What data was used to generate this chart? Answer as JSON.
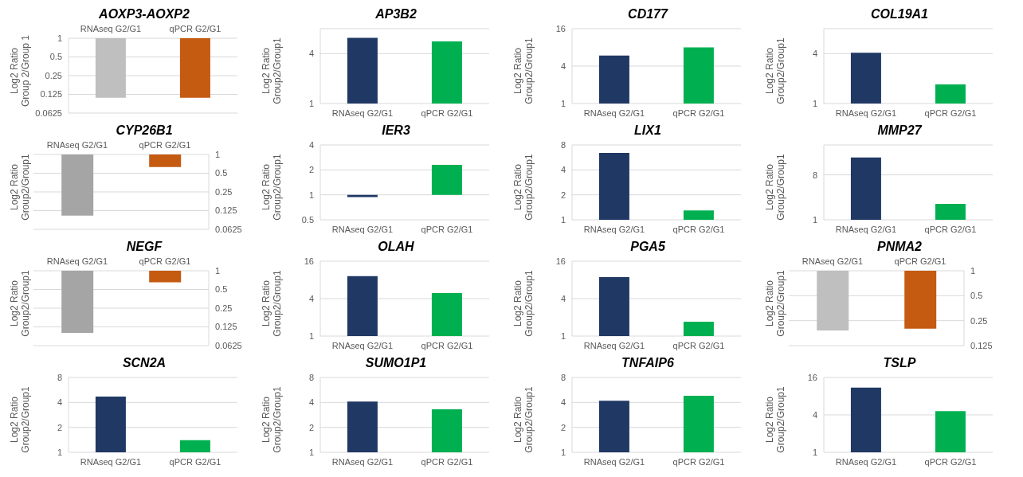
{
  "chart_data": [
    {
      "type": "bar",
      "title": "AOXP3-AOXP2",
      "ylabel": "Log2 Ratio\nGroup 2/Group 1",
      "categories": [
        "RNAseq G2/G1",
        "qPCR G2/G1"
      ],
      "values": [
        -0.89,
        -0.89
      ],
      "base": [
        1,
        1
      ],
      "colors": [
        "#bfbfbf",
        "#c55a11"
      ],
      "log": true,
      "ylim": [
        0.0625,
        1
      ],
      "yticks": [
        0.0625,
        0.125,
        0.25,
        0.5,
        1
      ],
      "grid": "y"
    },
    {
      "type": "bar",
      "title": "AP3B2",
      "ylabel": "Log2 Ratio\nGroup2/Group1",
      "categories": [
        "RNAseq G2/G1",
        "qPCR G2/G1"
      ],
      "values": [
        6.2,
        5.6
      ],
      "colors": [
        "#203864",
        "#00b050"
      ],
      "log": true,
      "ylim": [
        1,
        8
      ],
      "yticks": [
        1,
        4
      ],
      "grid": "y"
    },
    {
      "type": "bar",
      "title": "CD177",
      "ylabel": "Log2 Ratio\nGroup2/Group1",
      "categories": [
        "RNAseq G2/G1",
        "qPCR G2/G1"
      ],
      "values": [
        5.9,
        8
      ],
      "colors": [
        "#203864",
        "#00b050"
      ],
      "log": true,
      "ylim": [
        1,
        16
      ],
      "yticks": [
        1,
        4,
        16
      ],
      "grid": "y"
    },
    {
      "type": "bar",
      "title": "COL19A1",
      "ylabel": "Log2 Ratio\nGroup2/Group1",
      "categories": [
        "RNAseq G2/G1",
        "qPCR G2/G1"
      ],
      "values": [
        4.1,
        1.7
      ],
      "colors": [
        "#203864",
        "#00b050"
      ],
      "log": true,
      "ylim": [
        1,
        8
      ],
      "yticks": [
        1,
        4
      ],
      "grid": "y"
    },
    {
      "type": "bar",
      "title": "CYP26B1",
      "ylabel": "Log2 Ratio\nGroup2/Group1",
      "categories": [
        "RNAseq G2/G1",
        "qPCR G2/G1"
      ],
      "series": [
        {
          "axis": "y2",
          "values": [
            -0.896,
            -0.37
          ],
          "base": [
            1,
            1
          ]
        }
      ],
      "colors": [
        "#a5a5a5",
        "#c55a11"
      ],
      "log": "y2",
      "y2lim": [
        0.0625,
        1
      ],
      "y2ticks": [
        0.0625,
        0.125,
        0.25,
        0.5,
        1
      ],
      "grid": "y"
    },
    {
      "type": "bar",
      "title": "IER3",
      "ylabel": "Log2 Ratio\nGroup2/Group1",
      "categories": [
        "RNAseq G2/G1",
        "qPCR G2/G1"
      ],
      "values": [
        -0.06,
        1.3
      ],
      "base": [
        1,
        1
      ],
      "colors": [
        "#203864",
        "#00b050"
      ],
      "log": true,
      "ylim": [
        0.5,
        4
      ],
      "yticks": [
        0.5,
        1,
        2,
        4
      ],
      "grid": "y"
    },
    {
      "type": "bar",
      "title": "LIX1",
      "ylabel": "Log2 Ratio\nGroup2/Group1",
      "categories": [
        "RNAseq G2/G1",
        "qPCR G2/G1"
      ],
      "values": [
        6.4,
        1.3
      ],
      "colors": [
        "#203864",
        "#00b050"
      ],
      "log": true,
      "ylim": [
        1,
        8
      ],
      "yticks": [
        1,
        2,
        4,
        8
      ],
      "grid": "y"
    },
    {
      "type": "bar",
      "title": "MMP27",
      "ylabel": "Log2 Ratio\nGroup2/Group1",
      "categories": [
        "RNAseq G2/G1",
        "qPCR G2/G1"
      ],
      "values": [
        17.9,
        2.1
      ],
      "colors": [
        "#203864",
        "#00b050"
      ],
      "log": true,
      "ylim": [
        1,
        32
      ],
      "yticks": [
        1,
        8
      ],
      "grid": "y"
    },
    {
      "type": "bar",
      "title": "NEGF",
      "ylabel": "Log2 Ratio\nGroup2/Group1",
      "categories": [
        "RNAseq G2/G1",
        "qPCR G2/G1"
      ],
      "series": [
        {
          "axis": "y2",
          "values": [
            -0.9,
            -0.35
          ],
          "base": [
            1,
            1
          ]
        }
      ],
      "colors": [
        "#a5a5a5",
        "#c55a11"
      ],
      "log": "y2",
      "y2lim": [
        0.0625,
        1
      ],
      "y2ticks": [
        0.0625,
        0.125,
        0.25,
        0.5,
        1
      ],
      "grid": "y"
    },
    {
      "type": "bar",
      "title": "OLAH",
      "ylabel": "Log2 Ratio\nGroup2/Group1",
      "categories": [
        "RNAseq G2/G1",
        "qPCR G2/G1"
      ],
      "values": [
        9.2,
        4.9
      ],
      "colors": [
        "#203864",
        "#00b050"
      ],
      "log": true,
      "ylim": [
        1,
        16
      ],
      "yticks": [
        1,
        4,
        16
      ],
      "grid": "y"
    },
    {
      "type": "bar",
      "title": "PGA5",
      "ylabel": "Log2 Ratio\nGroup2/Group1",
      "categories": [
        "RNAseq G2/G1",
        "qPCR G2/G1"
      ],
      "values": [
        8.9,
        1.7
      ],
      "colors": [
        "#203864",
        "#00b050"
      ],
      "log": true,
      "ylim": [
        1,
        16
      ],
      "yticks": [
        1,
        4,
        16
      ],
      "grid": "y"
    },
    {
      "type": "bar",
      "title": "PNMA2",
      "ylabel": "Log2 Ratio\nGroup2/Group1",
      "categories": [
        "RNAseq G2/G1",
        "qPCR G2/G1"
      ],
      "series": [
        {
          "axis": "y2",
          "values": [
            -0.81,
            -0.8
          ],
          "base": [
            1,
            1
          ]
        }
      ],
      "colors": [
        "#bfbfbf",
        "#c55a11"
      ],
      "log": "y2",
      "y2lim": [
        0.125,
        1
      ],
      "y2ticks": [
        0.125,
        0.25,
        0.5,
        1
      ],
      "grid": "y"
    },
    {
      "type": "bar",
      "title": "SCN2A",
      "ylabel": "Log2 Ratio\nGroup2/Group1",
      "categories": [
        "RNAseq G2/G1",
        "qPCR G2/G1"
      ],
      "values": [
        4.7,
        1.4
      ],
      "colors": [
        "#203864",
        "#00b050"
      ],
      "log": true,
      "ylim": [
        1,
        8
      ],
      "yticks": [
        1,
        2,
        4,
        8
      ],
      "grid": "y"
    },
    {
      "type": "bar",
      "title": "SUMO1P1",
      "ylabel": "Log2 Ratio\nGroup2/Group1",
      "categories": [
        "RNAseq G2/G1",
        "qPCR G2/G1"
      ],
      "values": [
        4.1,
        3.3
      ],
      "colors": [
        "#203864",
        "#00b050"
      ],
      "log": true,
      "ylim": [
        1,
        8
      ],
      "yticks": [
        1,
        2,
        4,
        8
      ],
      "grid": "y"
    },
    {
      "type": "bar",
      "title": "TNFAIP6",
      "ylabel": "Log2 Ratio\nGroup2/Group1",
      "categories": [
        "RNAseq G2/G1",
        "qPCR G2/G1"
      ],
      "values": [
        4.2,
        4.8
      ],
      "colors": [
        "#203864",
        "#00b050"
      ],
      "log": true,
      "ylim": [
        1,
        8
      ],
      "yticks": [
        1,
        2,
        4,
        8
      ],
      "grid": "y"
    },
    {
      "type": "bar",
      "title": "TSLP",
      "ylabel": "Log2 Ratio\nGroup2/Group1",
      "categories": [
        "RNAseq G2/G1",
        "qPCR G2/G1"
      ],
      "values": [
        11,
        4.6
      ],
      "colors": [
        "#203864",
        "#00b050"
      ],
      "log": true,
      "ylim": [
        1,
        16
      ],
      "yticks": [
        1,
        4,
        16
      ],
      "grid": "y"
    }
  ]
}
